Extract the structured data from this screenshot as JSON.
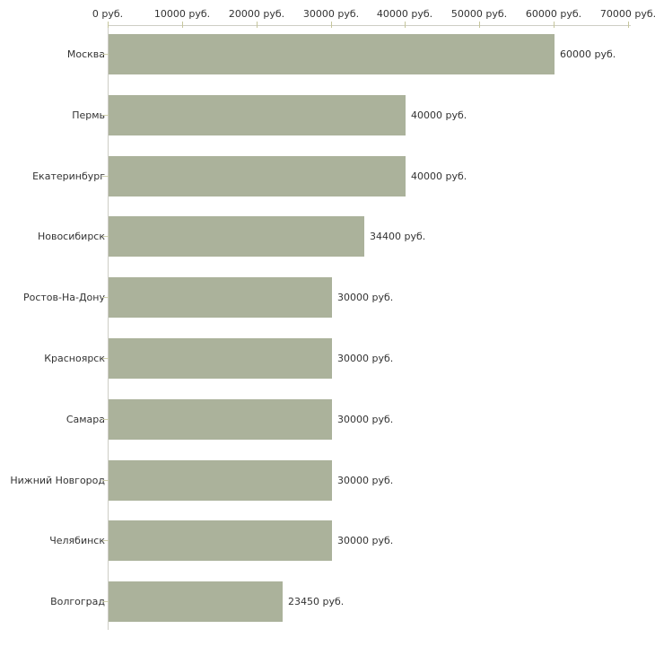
{
  "chart_data": {
    "type": "bar",
    "orientation": "horizontal",
    "categories": [
      "Москва",
      "Пермь",
      "Екатеринбург",
      "Новосибирск",
      "Ростов-На-Дону",
      "Красноярск",
      "Самара",
      "Нижний Новгород",
      "Челябинск",
      "Волгоград"
    ],
    "values": [
      60000,
      40000,
      40000,
      34400,
      30000,
      30000,
      30000,
      30000,
      30000,
      23450
    ],
    "bar_labels": [
      "60000 руб.",
      "40000 руб.",
      "40000 руб.",
      "34400 руб.",
      "30000 руб.",
      "30000 руб.",
      "30000 руб.",
      "30000 руб.",
      "30000 руб.",
      "23450 руб."
    ],
    "x_axis": {
      "position": "top",
      "min": 0,
      "max": 70000,
      "tick_interval": 10000,
      "ticks": [
        0,
        10000,
        20000,
        30000,
        40000,
        50000,
        60000,
        70000
      ],
      "tick_labels": [
        "0 руб.",
        "10000 руб.",
        "20000 руб.",
        "30000 руб.",
        "40000 руб.",
        "50000 руб.",
        "60000 руб.",
        "70000 руб."
      ]
    },
    "grid": false,
    "legend": false,
    "styles": {
      "bar_color": "#abb29b",
      "axis_line_color": "#cdcdc5",
      "x_tick_color": "#c6c69c",
      "y_tick_color": "#cfcfae",
      "text_color": "#333333",
      "background": "#ffffff"
    }
  }
}
